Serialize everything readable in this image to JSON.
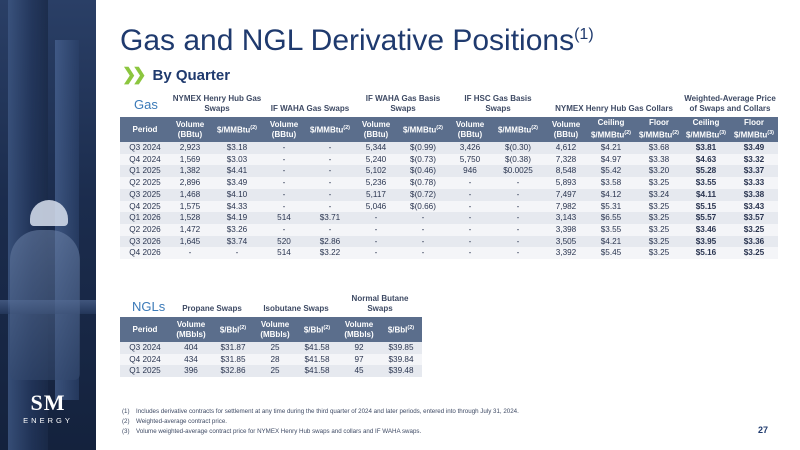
{
  "title": "Gas and NGL Derivative Positions",
  "title_sup": "(1)",
  "subtitle": "By Quarter",
  "logo": {
    "mark": "SM",
    "sub": "ENERGY"
  },
  "gas": {
    "label": "Gas",
    "groups": [
      "NYMEX Henry Hub Gas Swaps",
      "IF WAHA Gas Swaps",
      "IF WAHA Gas Basis Swaps",
      "IF HSC Gas Basis Swaps",
      "NYMEX Henry Hub Gas Collars",
      "Weighted-Average Price of Swaps and Collars"
    ],
    "headers": {
      "period": "Period",
      "volume": "Volume",
      "bbtu": "(BBtu)",
      "price": "$/MMBtu",
      "note2": "(2)",
      "note3": "(3)",
      "ceiling": "Ceiling",
      "floor": "Floor"
    },
    "rows": [
      [
        "Q3 2024",
        "2,923",
        "$3.18",
        "-",
        "-",
        "5,344",
        "$(0.99)",
        "3,426",
        "$(0.30)",
        "4,612",
        "$4.21",
        "$3.68",
        "$3.81",
        "$3.49"
      ],
      [
        "Q4 2024",
        "1,569",
        "$3.03",
        "-",
        "-",
        "5,240",
        "$(0.73)",
        "5,750",
        "$(0.38)",
        "7,328",
        "$4.97",
        "$3.38",
        "$4.63",
        "$3.32"
      ],
      [
        "Q1 2025",
        "1,382",
        "$4.41",
        "-",
        "-",
        "5,102",
        "$(0.46)",
        "946",
        "$0.0025",
        "8,548",
        "$5.42",
        "$3.20",
        "$5.28",
        "$3.37"
      ],
      [
        "Q2 2025",
        "2,896",
        "$3.49",
        "-",
        "-",
        "5,236",
        "$(0.78)",
        "-",
        "-",
        "5,893",
        "$3.58",
        "$3.25",
        "$3.55",
        "$3.33"
      ],
      [
        "Q3 2025",
        "1,468",
        "$4.10",
        "-",
        "-",
        "5,117",
        "$(0.72)",
        "-",
        "-",
        "7,497",
        "$4.12",
        "$3.24",
        "$4.11",
        "$3.38"
      ],
      [
        "Q4 2025",
        "1,575",
        "$4.33",
        "-",
        "-",
        "5,046",
        "$(0.66)",
        "-",
        "-",
        "7,982",
        "$5.31",
        "$3.25",
        "$5.15",
        "$3.43"
      ],
      [
        "Q1 2026",
        "1,528",
        "$4.19",
        "514",
        "$3.71",
        "-",
        "-",
        "-",
        "-",
        "3,143",
        "$6.55",
        "$3.25",
        "$5.57",
        "$3.57"
      ],
      [
        "Q2 2026",
        "1,472",
        "$3.26",
        "-",
        "-",
        "-",
        "-",
        "-",
        "-",
        "3,398",
        "$3.55",
        "$3.25",
        "$3.46",
        "$3.25"
      ],
      [
        "Q3 2026",
        "1,645",
        "$3.74",
        "520",
        "$2.86",
        "-",
        "-",
        "-",
        "-",
        "3,505",
        "$4.21",
        "$3.25",
        "$3.95",
        "$3.36"
      ],
      [
        "Q4 2026",
        "-",
        "-",
        "514",
        "$3.22",
        "-",
        "-",
        "-",
        "-",
        "3,392",
        "$5.45",
        "$3.25",
        "$5.16",
        "$3.25"
      ]
    ]
  },
  "ngl": {
    "label": "NGLs",
    "groups": [
      "Propane Swaps",
      "Isobutane Swaps",
      "Normal Butane Swaps"
    ],
    "headers": {
      "period": "Period",
      "volume": "Volume",
      "mbbls": "(MBbls)",
      "price": "$/Bbl",
      "note2": "(2)"
    },
    "rows": [
      [
        "Q3 2024",
        "404",
        "$31.87",
        "25",
        "$41.58",
        "92",
        "$39.85"
      ],
      [
        "Q4 2024",
        "434",
        "$31.85",
        "28",
        "$41.58",
        "97",
        "$39.84"
      ],
      [
        "Q1 2025",
        "396",
        "$32.86",
        "25",
        "$41.58",
        "45",
        "$39.48"
      ]
    ]
  },
  "footnotes": [
    [
      "(1)",
      "Includes derivative contracts for settlement at any time during the third quarter of 2024 and later periods, entered into through July 31, 2024."
    ],
    [
      "(2)",
      "Weighted-average contract price."
    ],
    [
      "(3)",
      "Volume weighted-average contract price for NYMEX Henry Hub swaps and collars and IF WAHA swaps."
    ]
  ],
  "page_number": "27",
  "colors": {
    "title": "#1f3a6e",
    "accent": "#8cc63f",
    "header_bg": "#5b6e8c",
    "section_label": "#3b7ab8"
  }
}
